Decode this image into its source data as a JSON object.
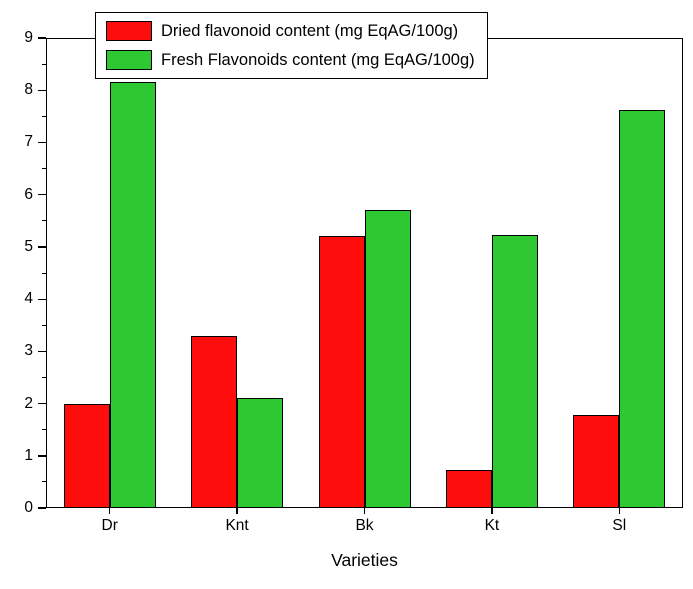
{
  "chart_data": {
    "type": "bar",
    "title": "",
    "xlabel": "Varieties",
    "ylabel": "",
    "categories": [
      "Dr",
      "Knt",
      "Bk",
      "Kt",
      "Sl"
    ],
    "series": [
      {
        "name": "Dried flavonoid content (mg EqAG/100g)",
        "color": "#fe0d0d",
        "values": [
          2.0,
          3.3,
          5.2,
          0.72,
          1.78
        ]
      },
      {
        "name": "Fresh Flavonoids content (mg EqAG/100g)",
        "color": "#2dc832",
        "values": [
          8.15,
          2.1,
          5.7,
          5.22,
          7.63
        ]
      }
    ],
    "ylim": [
      0,
      9
    ],
    "yticks": [
      0,
      1,
      2,
      3,
      4,
      5,
      6,
      7,
      8,
      9
    ],
    "minor_tick_step": 0.5,
    "grid": false,
    "legend_position": "top-left",
    "bar_edge_color": "#000000",
    "frame": "box"
  }
}
